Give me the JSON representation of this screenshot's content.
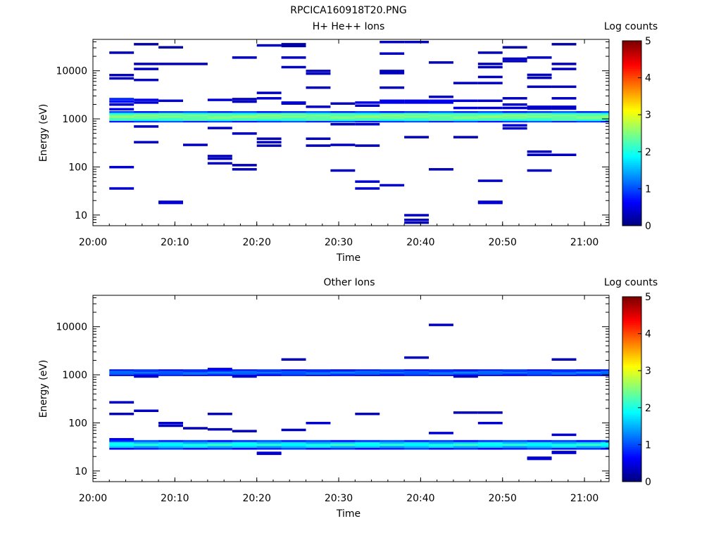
{
  "figure_title": "RPCICA160918T20.PNG",
  "colors": {
    "colormap": [
      "#000080",
      "#0000ff",
      "#0080ff",
      "#00ffff",
      "#80ff80",
      "#ffff00",
      "#ff8000",
      "#ff0000",
      "#800000"
    ],
    "axis": "#000000",
    "background": "#ffffff"
  },
  "chart_data": [
    {
      "type": "heatmap",
      "title": "H+ He++ Ions",
      "xlabel": "Time",
      "ylabel": "Energy (eV)",
      "x_ticks": [
        "20:00",
        "20:10",
        "20:20",
        "20:30",
        "20:40",
        "20:50",
        "21:00"
      ],
      "y_ticks": [
        "10",
        "100",
        "1000",
        "10000"
      ],
      "xlim": [
        "20:00",
        "21:03"
      ],
      "y_scale": "log",
      "ylim": [
        6,
        45000
      ],
      "colorbar": {
        "label": "Log counts",
        "ticks": [
          "0",
          "1",
          "2",
          "3",
          "4",
          "5"
        ],
        "range": [
          0,
          5
        ]
      },
      "grid": false,
      "band": {
        "emin": 850,
        "emax": 1450,
        "levels": [
          0.9,
          2.1,
          2.3,
          2.5,
          2.4,
          2.1,
          0.9
        ]
      },
      "time_steps": [
        "20:02",
        "20:05",
        "20:08",
        "20:11",
        "20:14",
        "20:17",
        "20:20",
        "20:23",
        "20:26",
        "20:29",
        "20:32",
        "20:35",
        "20:38",
        "20:41",
        "20:44",
        "20:47",
        "20:50",
        "20:53",
        "20:56",
        "20:59",
        "21:02"
      ],
      "cells": [
        {
          "t": 0,
          "e": 24000,
          "v": 0.3
        },
        {
          "t": 0,
          "e": 8200,
          "v": 0.3
        },
        {
          "t": 0,
          "e": 7000,
          "v": 0.3
        },
        {
          "t": 0,
          "e": 2600,
          "v": 0.8
        },
        {
          "t": 0,
          "e": 2300,
          "v": 0.7
        },
        {
          "t": 0,
          "e": 2000,
          "v": 0.4
        },
        {
          "t": 0,
          "e": 1600,
          "v": 0.6
        },
        {
          "t": 0,
          "e": 100,
          "v": 0.4
        },
        {
          "t": 0,
          "e": 36,
          "v": 0.4
        },
        {
          "t": 1,
          "e": 36000,
          "v": 0.2
        },
        {
          "t": 1,
          "e": 14000,
          "v": 0.3
        },
        {
          "t": 1,
          "e": 11000,
          "v": 0.3
        },
        {
          "t": 1,
          "e": 6500,
          "v": 0.3
        },
        {
          "t": 1,
          "e": 2500,
          "v": 0.5
        },
        {
          "t": 1,
          "e": 2200,
          "v": 0.4
        },
        {
          "t": 1,
          "e": 700,
          "v": 0.3
        },
        {
          "t": 1,
          "e": 330,
          "v": 0.3
        },
        {
          "t": 2,
          "e": 31000,
          "v": 0.2
        },
        {
          "t": 2,
          "e": 14000,
          "v": 0.3
        },
        {
          "t": 2,
          "e": 2400,
          "v": 0.4
        },
        {
          "t": 2,
          "e": 19,
          "v": 0.4
        },
        {
          "t": 2,
          "e": 18,
          "v": 0.4
        },
        {
          "t": 3,
          "e": 14000,
          "v": 0.3
        },
        {
          "t": 3,
          "e": 290,
          "v": 0.3
        },
        {
          "t": 4,
          "e": 2500,
          "v": 0.4
        },
        {
          "t": 4,
          "e": 650,
          "v": 0.3
        },
        {
          "t": 4,
          "e": 170,
          "v": 0.3
        },
        {
          "t": 4,
          "e": 150,
          "v": 0.3
        },
        {
          "t": 4,
          "e": 120,
          "v": 0.3
        },
        {
          "t": 5,
          "e": 19000,
          "v": 0.3
        },
        {
          "t": 5,
          "e": 2600,
          "v": 0.3
        },
        {
          "t": 5,
          "e": 2300,
          "v": 0.3
        },
        {
          "t": 5,
          "e": 500,
          "v": 0.3
        },
        {
          "t": 5,
          "e": 110,
          "v": 0.3
        },
        {
          "t": 5,
          "e": 90,
          "v": 0.3
        },
        {
          "t": 6,
          "e": 34000,
          "v": 0.3
        },
        {
          "t": 6,
          "e": 3500,
          "v": 0.3
        },
        {
          "t": 6,
          "e": 2700,
          "v": 0.4
        },
        {
          "t": 6,
          "e": 390,
          "v": 0.3
        },
        {
          "t": 6,
          "e": 330,
          "v": 0.3
        },
        {
          "t": 6,
          "e": 280,
          "v": 0.3
        },
        {
          "t": 7,
          "e": 36000,
          "v": 0.2
        },
        {
          "t": 7,
          "e": 33000,
          "v": 0.2
        },
        {
          "t": 7,
          "e": 19000,
          "v": 0.3
        },
        {
          "t": 7,
          "e": 12000,
          "v": 0.3
        },
        {
          "t": 7,
          "e": 2200,
          "v": 0.4
        },
        {
          "t": 7,
          "e": 2100,
          "v": 0.4
        },
        {
          "t": 8,
          "e": 10000,
          "v": 0.3
        },
        {
          "t": 8,
          "e": 8800,
          "v": 0.3
        },
        {
          "t": 8,
          "e": 4500,
          "v": 0.3
        },
        {
          "t": 8,
          "e": 1800,
          "v": 0.3
        },
        {
          "t": 8,
          "e": 390,
          "v": 0.3
        },
        {
          "t": 8,
          "e": 280,
          "v": 0.3
        },
        {
          "t": 9,
          "e": 2100,
          "v": 0.3
        },
        {
          "t": 9,
          "e": 290,
          "v": 0.3
        },
        {
          "t": 9,
          "e": 85,
          "v": 0.3
        },
        {
          "t": 9,
          "e": 780,
          "v": 0.3
        },
        {
          "t": 10,
          "e": 2200,
          "v": 0.5
        },
        {
          "t": 10,
          "e": 1900,
          "v": 0.3
        },
        {
          "t": 10,
          "e": 280,
          "v": 0.3
        },
        {
          "t": 10,
          "e": 50,
          "v": 0.4
        },
        {
          "t": 10,
          "e": 36,
          "v": 0.4
        },
        {
          "t": 10,
          "e": 780,
          "v": 0.4
        },
        {
          "t": 11,
          "e": 40000,
          "v": 0.3
        },
        {
          "t": 11,
          "e": 23000,
          "v": 0.3
        },
        {
          "t": 11,
          "e": 10000,
          "v": 0.3
        },
        {
          "t": 11,
          "e": 9000,
          "v": 0.3
        },
        {
          "t": 11,
          "e": 4500,
          "v": 0.3
        },
        {
          "t": 11,
          "e": 2400,
          "v": 0.5
        },
        {
          "t": 11,
          "e": 2200,
          "v": 0.5
        },
        {
          "t": 11,
          "e": 42,
          "v": 0.4
        },
        {
          "t": 12,
          "e": 40000,
          "v": 0.3
        },
        {
          "t": 12,
          "e": 2400,
          "v": 0.5
        },
        {
          "t": 12,
          "e": 2200,
          "v": 0.5
        },
        {
          "t": 12,
          "e": 420,
          "v": 0.3
        },
        {
          "t": 12,
          "e": 10,
          "v": 0.3
        },
        {
          "t": 12,
          "e": 8,
          "v": 0.3
        },
        {
          "t": 12,
          "e": 7,
          "v": 0.3
        },
        {
          "t": 13,
          "e": 15000,
          "v": 0.3
        },
        {
          "t": 13,
          "e": 2900,
          "v": 0.3
        },
        {
          "t": 13,
          "e": 2400,
          "v": 0.6
        },
        {
          "t": 13,
          "e": 2200,
          "v": 0.5
        },
        {
          "t": 13,
          "e": 90,
          "v": 0.3
        },
        {
          "t": 14,
          "e": 5600,
          "v": 0.3
        },
        {
          "t": 14,
          "e": 2400,
          "v": 0.5
        },
        {
          "t": 14,
          "e": 1700,
          "v": 0.5
        },
        {
          "t": 14,
          "e": 420,
          "v": 0.3
        },
        {
          "t": 15,
          "e": 24000,
          "v": 0.3
        },
        {
          "t": 15,
          "e": 14000,
          "v": 0.3
        },
        {
          "t": 15,
          "e": 12000,
          "v": 0.3
        },
        {
          "t": 15,
          "e": 7500,
          "v": 0.3
        },
        {
          "t": 15,
          "e": 5600,
          "v": 0.3
        },
        {
          "t": 15,
          "e": 2400,
          "v": 0.4
        },
        {
          "t": 15,
          "e": 1700,
          "v": 0.4
        },
        {
          "t": 15,
          "e": 52,
          "v": 0.4
        },
        {
          "t": 15,
          "e": 19,
          "v": 0.4
        },
        {
          "t": 15,
          "e": 18,
          "v": 0.4
        },
        {
          "t": 16,
          "e": 31000,
          "v": 0.2
        },
        {
          "t": 16,
          "e": 18000,
          "v": 0.3
        },
        {
          "t": 16,
          "e": 16000,
          "v": 0.3
        },
        {
          "t": 16,
          "e": 2700,
          "v": 0.3
        },
        {
          "t": 16,
          "e": 2000,
          "v": 0.4
        },
        {
          "t": 16,
          "e": 1700,
          "v": 0.4
        },
        {
          "t": 16,
          "e": 740,
          "v": 0.4
        },
        {
          "t": 16,
          "e": 640,
          "v": 0.4
        },
        {
          "t": 17,
          "e": 19000,
          "v": 0.3
        },
        {
          "t": 17,
          "e": 8300,
          "v": 0.3
        },
        {
          "t": 17,
          "e": 7200,
          "v": 0.3
        },
        {
          "t": 17,
          "e": 4700,
          "v": 0.3
        },
        {
          "t": 17,
          "e": 1800,
          "v": 0.4
        },
        {
          "t": 17,
          "e": 1650,
          "v": 0.3
        },
        {
          "t": 17,
          "e": 210,
          "v": 0.3
        },
        {
          "t": 17,
          "e": 180,
          "v": 0.3
        },
        {
          "t": 17,
          "e": 85,
          "v": 0.3
        },
        {
          "t": 18,
          "e": 36000,
          "v": 0.2
        },
        {
          "t": 18,
          "e": 14000,
          "v": 0.3
        },
        {
          "t": 18,
          "e": 11000,
          "v": 0.3
        },
        {
          "t": 18,
          "e": 4700,
          "v": 0.3
        },
        {
          "t": 18,
          "e": 2700,
          "v": 0.3
        },
        {
          "t": 18,
          "e": 1800,
          "v": 0.4
        },
        {
          "t": 18,
          "e": 1650,
          "v": 0.3
        },
        {
          "t": 18,
          "e": 180,
          "v": 0.3
        }
      ]
    },
    {
      "type": "heatmap",
      "title": "Other Ions",
      "xlabel": "Time",
      "ylabel": "Energy (eV)",
      "x_ticks": [
        "20:00",
        "20:10",
        "20:20",
        "20:30",
        "20:40",
        "20:50",
        "21:00"
      ],
      "y_ticks": [
        "10",
        "100",
        "1000",
        "10000"
      ],
      "xlim": [
        "20:00",
        "21:03"
      ],
      "y_scale": "log",
      "ylim": [
        6,
        45000
      ],
      "colorbar": {
        "label": "Log counts",
        "ticks": [
          "0",
          "1",
          "2",
          "3",
          "4",
          "5"
        ],
        "range": [
          0,
          5
        ]
      },
      "grid": false,
      "band": {
        "emin": 950,
        "emax": 1300,
        "levels": [
          0.6,
          1.0,
          1.2,
          1.0,
          0.7
        ]
      },
      "band2": {
        "emin": 28,
        "emax": 44,
        "levels": [
          0.8,
          1.6,
          2.0,
          1.7,
          0.9
        ]
      },
      "time_steps": [
        "20:02",
        "20:05",
        "20:08",
        "20:11",
        "20:14",
        "20:17",
        "20:20",
        "20:23",
        "20:26",
        "20:29",
        "20:32",
        "20:35",
        "20:38",
        "20:41",
        "20:44",
        "20:47",
        "20:50",
        "20:53",
        "20:56",
        "20:59",
        "21:02"
      ],
      "cells": [
        {
          "t": 0,
          "e": 270,
          "v": 0.3
        },
        {
          "t": 0,
          "e": 155,
          "v": 0.3
        },
        {
          "t": 0,
          "e": 46,
          "v": 0.6
        },
        {
          "t": 1,
          "e": 180,
          "v": 0.3
        },
        {
          "t": 1,
          "e": 930,
          "v": 0.4
        },
        {
          "t": 2,
          "e": 100,
          "v": 0.4
        },
        {
          "t": 2,
          "e": 88,
          "v": 0.3
        },
        {
          "t": 3,
          "e": 78,
          "v": 0.3
        },
        {
          "t": 4,
          "e": 155,
          "v": 0.3
        },
        {
          "t": 4,
          "e": 74,
          "v": 0.3
        },
        {
          "t": 4,
          "e": 1330,
          "v": 0.6
        },
        {
          "t": 5,
          "e": 68,
          "v": 0.3
        },
        {
          "t": 5,
          "e": 930,
          "v": 0.4
        },
        {
          "t": 6,
          "e": 24,
          "v": 0.4
        },
        {
          "t": 6,
          "e": 23,
          "v": 0.4
        },
        {
          "t": 7,
          "e": 2100,
          "v": 0.3
        },
        {
          "t": 7,
          "e": 72,
          "v": 0.3
        },
        {
          "t": 8,
          "e": 100,
          "v": 0.4
        },
        {
          "t": 10,
          "e": 155,
          "v": 0.3
        },
        {
          "t": 12,
          "e": 2300,
          "v": 0.3
        },
        {
          "t": 13,
          "e": 11000,
          "v": 0.3
        },
        {
          "t": 13,
          "e": 62,
          "v": 0.4
        },
        {
          "t": 14,
          "e": 165,
          "v": 0.3
        },
        {
          "t": 14,
          "e": 930,
          "v": 0.3
        },
        {
          "t": 15,
          "e": 165,
          "v": 0.3
        },
        {
          "t": 15,
          "e": 100,
          "v": 0.4
        },
        {
          "t": 17,
          "e": 19,
          "v": 0.4
        },
        {
          "t": 17,
          "e": 18,
          "v": 0.4
        },
        {
          "t": 18,
          "e": 2100,
          "v": 0.3
        },
        {
          "t": 18,
          "e": 57,
          "v": 0.4
        },
        {
          "t": 18,
          "e": 25,
          "v": 0.4
        },
        {
          "t": 18,
          "e": 24,
          "v": 0.4
        }
      ]
    }
  ]
}
